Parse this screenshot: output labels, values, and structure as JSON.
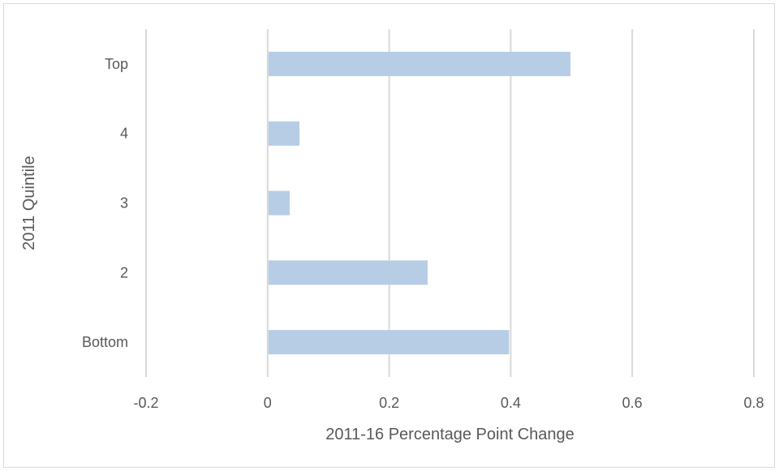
{
  "chart_data": {
    "type": "bar",
    "orientation": "horizontal",
    "categories": [
      "Top",
      "4",
      "3",
      "2",
      "Bottom"
    ],
    "values": [
      0.497,
      0.051,
      0.035,
      0.262,
      0.396
    ],
    "xlabel": "2011-16 Percentage Point Change",
    "ylabel": "2011 Quintile",
    "xlim": [
      -0.2,
      0.8
    ],
    "xticks": [
      "-0.2",
      "0",
      "0.2",
      "0.4",
      "0.6",
      "0.8"
    ],
    "grid": "vertical",
    "legend": "none",
    "colors": {
      "bar": "#b7cde6",
      "gridline": "#d9d9d9",
      "text": "#595959",
      "border": "#d9d9d9"
    }
  }
}
